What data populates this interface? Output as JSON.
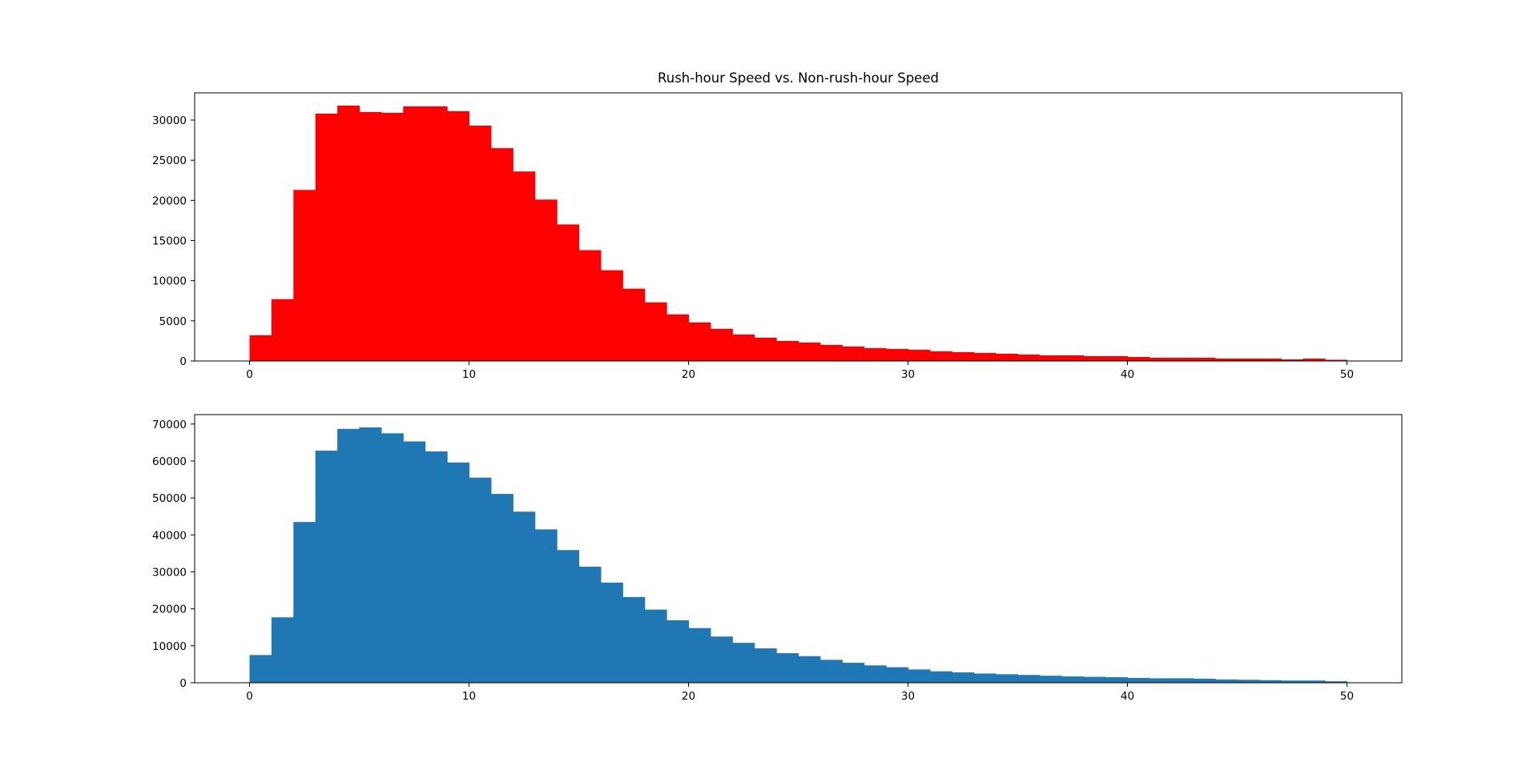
{
  "figure": {
    "title": "Rush-hour Speed vs. Non-rush-hour Speed"
  },
  "chart_data": [
    {
      "type": "bar",
      "subtype": "histogram",
      "title": "Rush-hour Speed vs. Non-rush-hour Speed",
      "xlabel": "",
      "ylabel": "",
      "color": "#ff0000",
      "bin_start": 0,
      "bin_width": 1,
      "values": [
        3200,
        7700,
        21300,
        30800,
        31800,
        31000,
        30900,
        31700,
        31700,
        31100,
        29300,
        26500,
        23600,
        20100,
        17000,
        13800,
        11300,
        9000,
        7300,
        5800,
        4800,
        4000,
        3300,
        2900,
        2500,
        2300,
        2000,
        1800,
        1600,
        1500,
        1400,
        1200,
        1100,
        1000,
        900,
        800,
        700,
        700,
        600,
        600,
        500,
        400,
        400,
        400,
        300,
        300,
        300,
        200,
        300,
        150
      ],
      "xlim": [
        -2.5,
        52.5
      ],
      "ylim": [
        0,
        33390
      ],
      "xticks": [
        0,
        10,
        20,
        30,
        40,
        50
      ],
      "yticks": [
        0,
        5000,
        10000,
        15000,
        20000,
        25000,
        30000
      ],
      "grid": false
    },
    {
      "type": "bar",
      "subtype": "histogram",
      "title": "",
      "xlabel": "",
      "ylabel": "",
      "color": "#1f77b4",
      "bin_start": 0,
      "bin_width": 1,
      "values": [
        7500,
        17700,
        43500,
        62800,
        68700,
        69100,
        67500,
        65300,
        62600,
        59600,
        55500,
        51100,
        46300,
        41500,
        35900,
        31400,
        27100,
        23200,
        19800,
        16900,
        14800,
        12500,
        10800,
        9300,
        8000,
        7200,
        6200,
        5400,
        4700,
        4200,
        3600,
        3100,
        2800,
        2500,
        2300,
        2100,
        1900,
        1700,
        1600,
        1500,
        1300,
        1200,
        1200,
        1100,
        900,
        800,
        700,
        600,
        600,
        400
      ],
      "xlim": [
        -2.5,
        52.5
      ],
      "ylim": [
        0,
        72555
      ],
      "xticks": [
        0,
        10,
        20,
        30,
        40,
        50
      ],
      "yticks": [
        0,
        10000,
        20000,
        30000,
        40000,
        50000,
        60000,
        70000
      ],
      "grid": false
    }
  ]
}
